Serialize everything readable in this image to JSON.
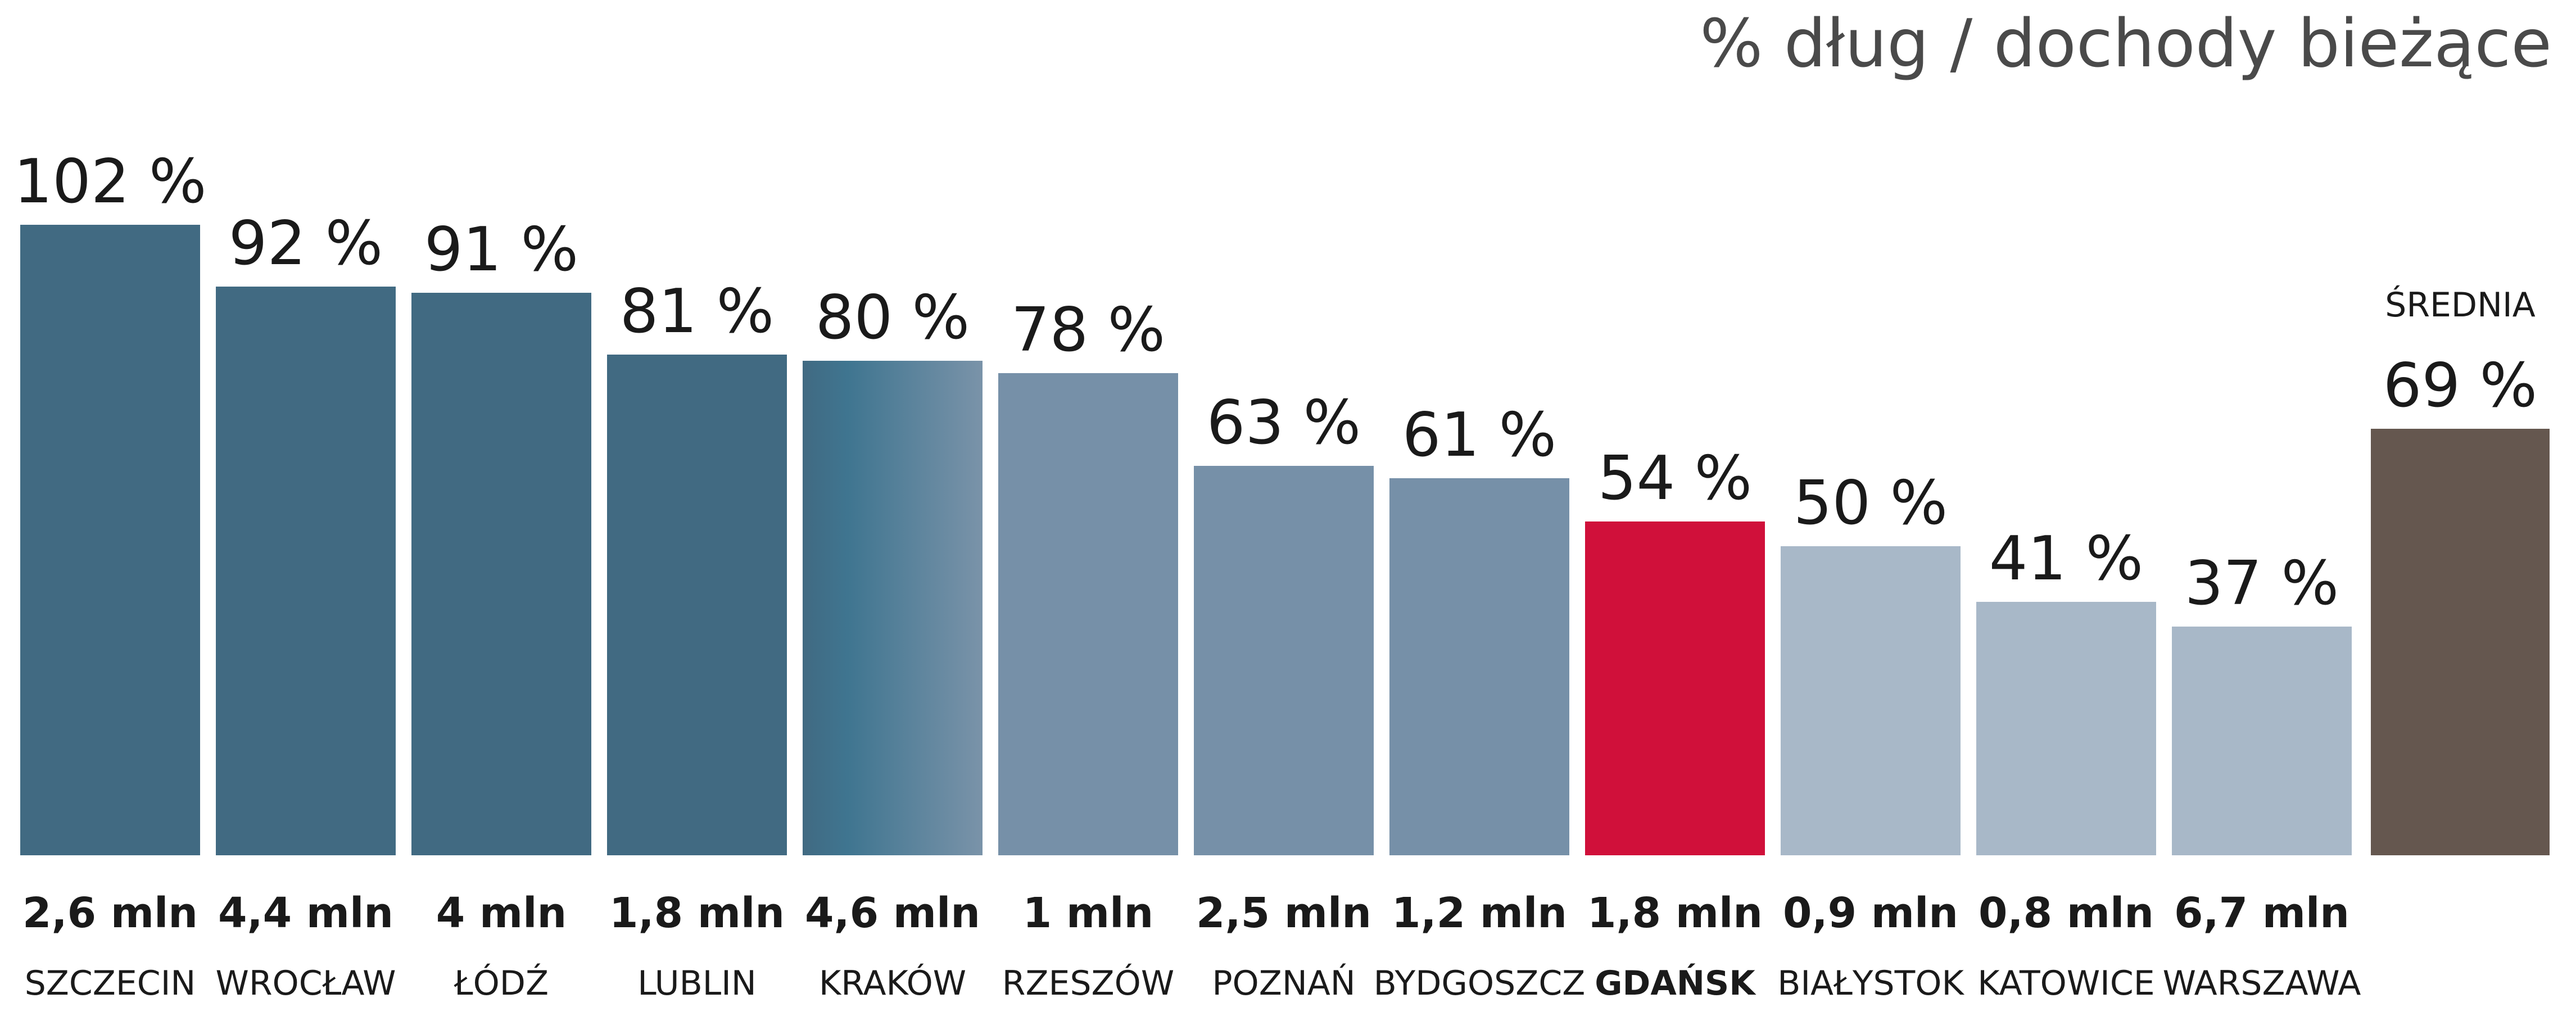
{
  "chart_data": {
    "type": "bar",
    "title": "% dług / dochody bieżące",
    "unit": "%",
    "ylim": [
      0,
      110
    ],
    "grid": false,
    "legend": "none",
    "bars": [
      {
        "category": "SZCZECIN",
        "value": 102,
        "value_label": "102 %",
        "amount": "2,6 mln",
        "color": "#416a82"
      },
      {
        "category": "WROCŁAW",
        "value": 92,
        "value_label": "92 %",
        "amount": "4,4 mln",
        "color": "#416a82"
      },
      {
        "category": "ŁÓDŹ",
        "value": 91,
        "value_label": "91 %",
        "amount": "4 mln",
        "color": "#416a82"
      },
      {
        "category": "LUBLIN",
        "value": 81,
        "value_label": "81 %",
        "amount": "1,8 mln",
        "color": "#416a82"
      },
      {
        "category": "KRAKÓW",
        "value": 80,
        "value_label": "80 %",
        "amount": "4,6 mln",
        "color": "#416a82",
        "gradient_to": "#7a93a9"
      },
      {
        "category": "RZESZÓW",
        "value": 78,
        "value_label": "78 %",
        "amount": "1 mln",
        "color": "#7690a8"
      },
      {
        "category": "POZNAŃ",
        "value": 63,
        "value_label": "63 %",
        "amount": "2,5 mln",
        "color": "#7690a8"
      },
      {
        "category": "BYDGOSZCZ",
        "value": 61,
        "value_label": "61 %",
        "amount": "1,2 mln",
        "color": "#7690a8"
      },
      {
        "category": "GDAŃSK",
        "value": 54,
        "value_label": "54 %",
        "amount": "1,8 mln",
        "color": "#d0103a",
        "highlight": true
      },
      {
        "category": "BIAŁYSTOK",
        "value": 50,
        "value_label": "50 %",
        "amount": "0,9 mln",
        "color": "#a8b8c8"
      },
      {
        "category": "KATOWICE",
        "value": 41,
        "value_label": "41 %",
        "amount": "0,8 mln",
        "color": "#a8b8c8"
      },
      {
        "category": "WARSZAWA",
        "value": 37,
        "value_label": "37 %",
        "amount": "6,7 mln",
        "color": "#a8b8c8"
      }
    ],
    "average": {
      "caption": "ŚREDNIA",
      "value": 69,
      "value_label": "69 %",
      "color": "#65574f"
    }
  }
}
